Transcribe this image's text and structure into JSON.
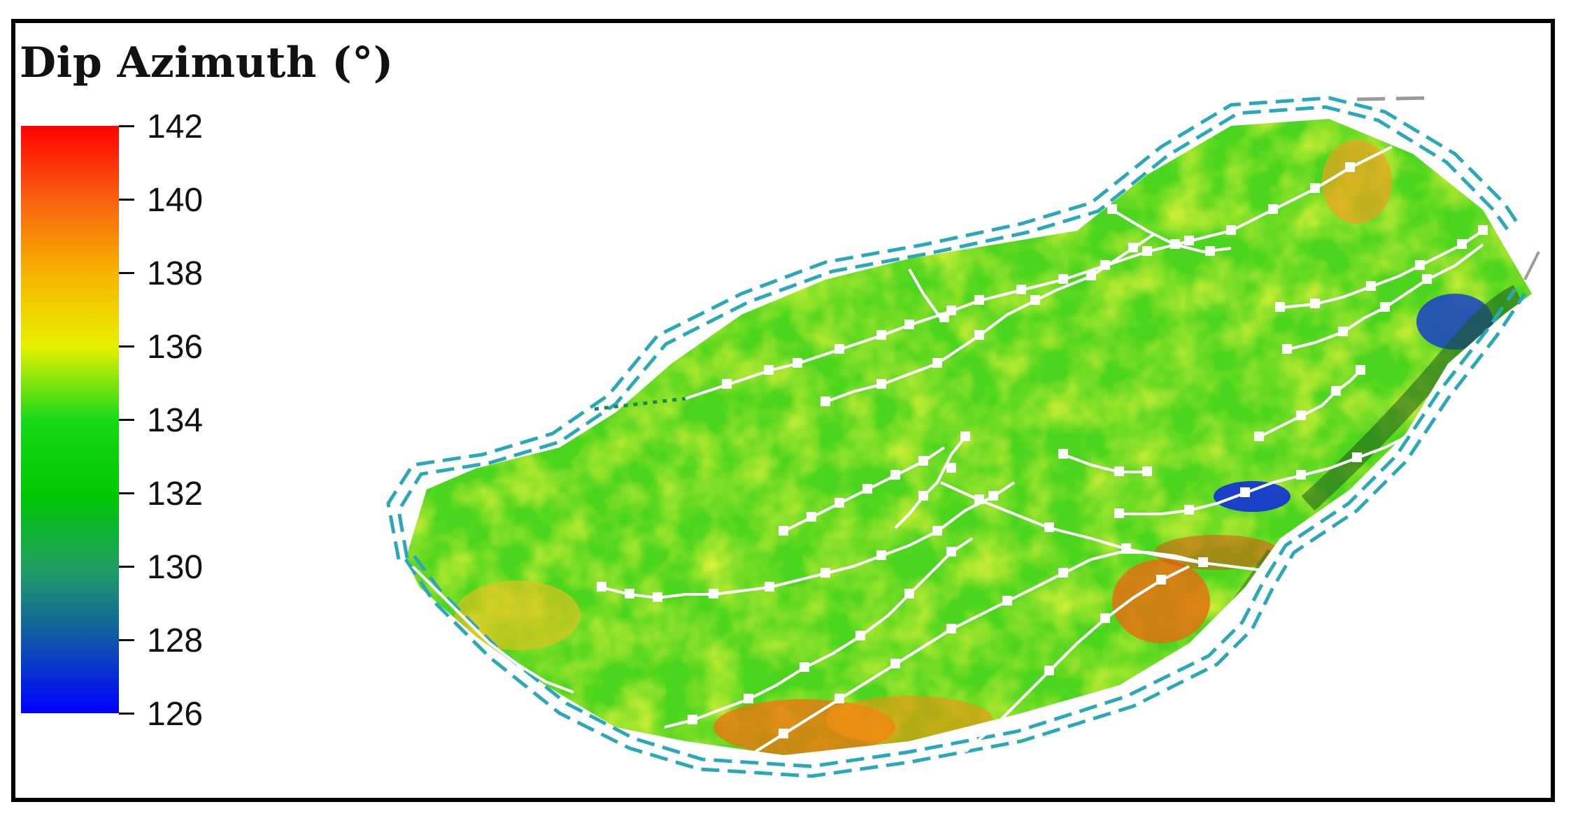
{
  "legend": {
    "title": "Dip Azimuth (°)",
    "min": 126,
    "max": 142,
    "ticks": [
      "142",
      "140",
      "138",
      "136",
      "134",
      "132",
      "130",
      "128",
      "126"
    ],
    "gradient": [
      {
        "stop": 0.0,
        "color": "#0000ff"
      },
      {
        "stop": 0.14,
        "color": "#1060a0"
      },
      {
        "stop": 0.25,
        "color": "#1fa060"
      },
      {
        "stop": 0.375,
        "color": "#00c800"
      },
      {
        "stop": 0.5,
        "color": "#19d919"
      },
      {
        "stop": 0.625,
        "color": "#e8f000"
      },
      {
        "stop": 0.75,
        "color": "#f7b300"
      },
      {
        "stop": 0.875,
        "color": "#f86010"
      },
      {
        "stop": 1.0,
        "color": "#ff0000"
      }
    ]
  },
  "colors": {
    "boundary_dashed": "#2aa8b8",
    "fault_lines": "#ffffff",
    "surface_base": "#4cd51e",
    "frame": "#000000"
  }
}
